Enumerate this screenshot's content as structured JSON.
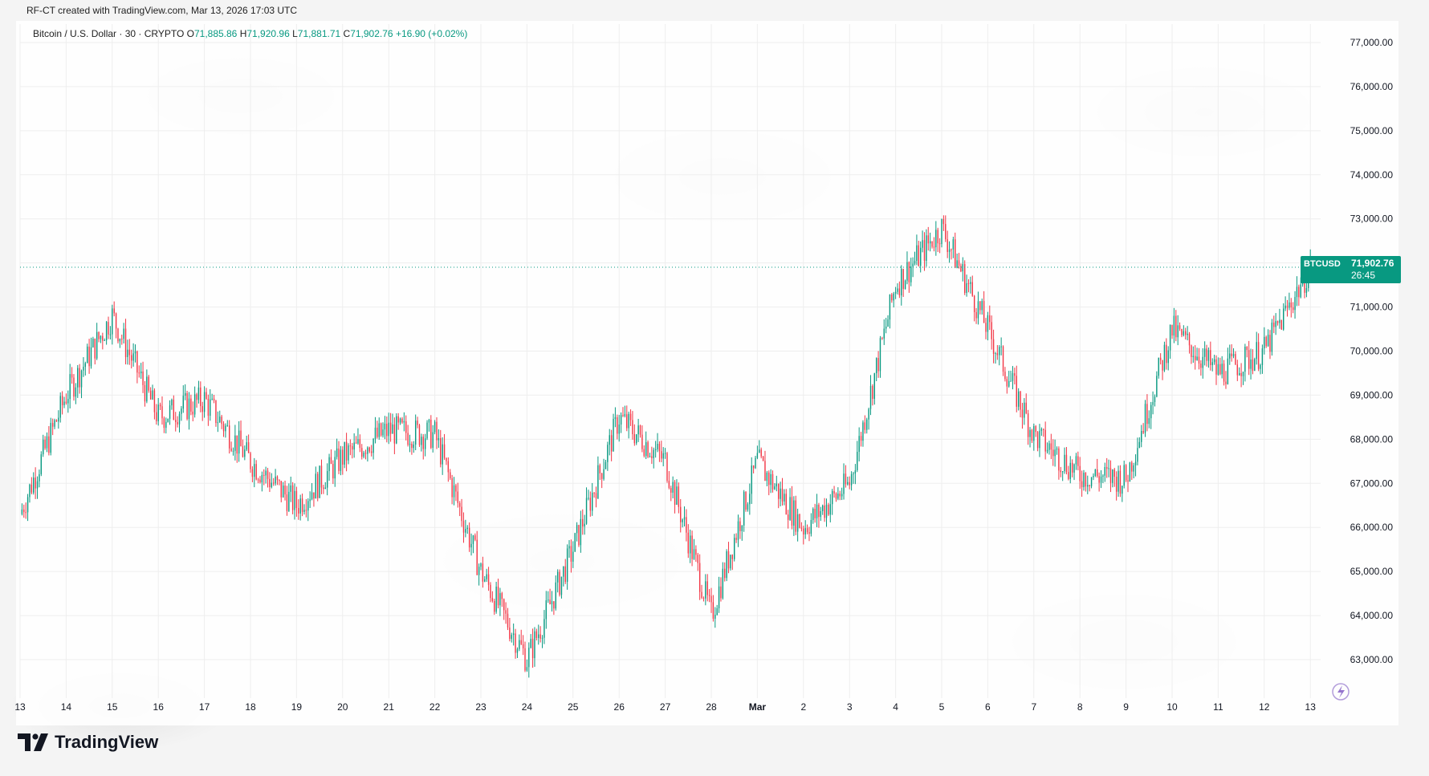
{
  "header": {
    "caption": "RF-CT created with TradingView.com, Mar 13, 2026 17:03 UTC"
  },
  "legend": {
    "symbol": "Bitcoin / U.S. Dollar · 30 · CRYPTO",
    "open": "71,885.86",
    "high": "71,920.96",
    "low": "71,881.71",
    "close": "71,902.76",
    "change": "+16.90 (+0.02%)"
  },
  "price_tag": {
    "symbol": "BTCUSD",
    "price": "71,902.76",
    "countdown": "26:45",
    "color": "#089981"
  },
  "brand": {
    "name": "TradingView"
  },
  "colors": {
    "up": "#089981",
    "down": "#f23645",
    "grid": "#eeeeee"
  },
  "icons": [
    "tradingview-logo-icon",
    "lightning-sparkle-icon"
  ],
  "chart_data": {
    "type": "candlestick",
    "symbol": "BTCUSD",
    "interval": "30",
    "ylim": [
      62600,
      77400
    ],
    "y_ticks": [
      "63,000.00",
      "64,000.00",
      "65,000.00",
      "66,000.00",
      "67,000.00",
      "68,000.00",
      "69,000.00",
      "70,000.00",
      "71,000.00",
      "72,000.00",
      "73,000.00",
      "74,000.00",
      "75,000.00",
      "76,000.00",
      "77,000.00"
    ],
    "y_tick_values": [
      63000,
      64000,
      65000,
      66000,
      67000,
      68000,
      69000,
      70000,
      71000,
      72000,
      73000,
      74000,
      75000,
      76000,
      77000
    ],
    "x_ticks": [
      "13",
      "14",
      "15",
      "16",
      "17",
      "18",
      "19",
      "20",
      "21",
      "22",
      "23",
      "24",
      "25",
      "26",
      "27",
      "28",
      "Mar",
      "2",
      "3",
      "4",
      "5",
      "6",
      "7",
      "8",
      "9",
      "10",
      "11",
      "12",
      "13"
    ],
    "last_price": 71902.76,
    "daily_close_path": [
      {
        "date": "Feb 13",
        "close": 66300
      },
      {
        "date": "Feb 14",
        "close": 69000
      },
      {
        "date": "Feb 15",
        "close": 70800
      },
      {
        "date": "Feb 16",
        "close": 68500
      },
      {
        "date": "Feb 17",
        "close": 68900
      },
      {
        "date": "Feb 18",
        "close": 67500
      },
      {
        "date": "Feb 19",
        "close": 66500
      },
      {
        "date": "Feb 20",
        "close": 67600
      },
      {
        "date": "Feb 21",
        "close": 68200
      },
      {
        "date": "Feb 22",
        "close": 68100
      },
      {
        "date": "Feb 23",
        "close": 65000
      },
      {
        "date": "Feb 24",
        "close": 63000
      },
      {
        "date": "Feb 25",
        "close": 65500
      },
      {
        "date": "Feb 26",
        "close": 68500
      },
      {
        "date": "Feb 27",
        "close": 67500
      },
      {
        "date": "Feb 28",
        "close": 64000
      },
      {
        "date": "Mar 1",
        "close": 67500
      },
      {
        "date": "Mar 2",
        "close": 66000
      },
      {
        "date": "Mar 3",
        "close": 67000
      },
      {
        "date": "Mar 4",
        "close": 71500
      },
      {
        "date": "Mar 5",
        "close": 72800
      },
      {
        "date": "Mar 6",
        "close": 70500
      },
      {
        "date": "Mar 7",
        "close": 68100
      },
      {
        "date": "Mar 8",
        "close": 67200
      },
      {
        "date": "Mar 9",
        "close": 67100
      },
      {
        "date": "Mar 10",
        "close": 70500
      },
      {
        "date": "Mar 11",
        "close": 69500
      },
      {
        "date": "Mar 12",
        "close": 70000
      },
      {
        "date": "Mar 13",
        "close": 71900
      }
    ]
  }
}
